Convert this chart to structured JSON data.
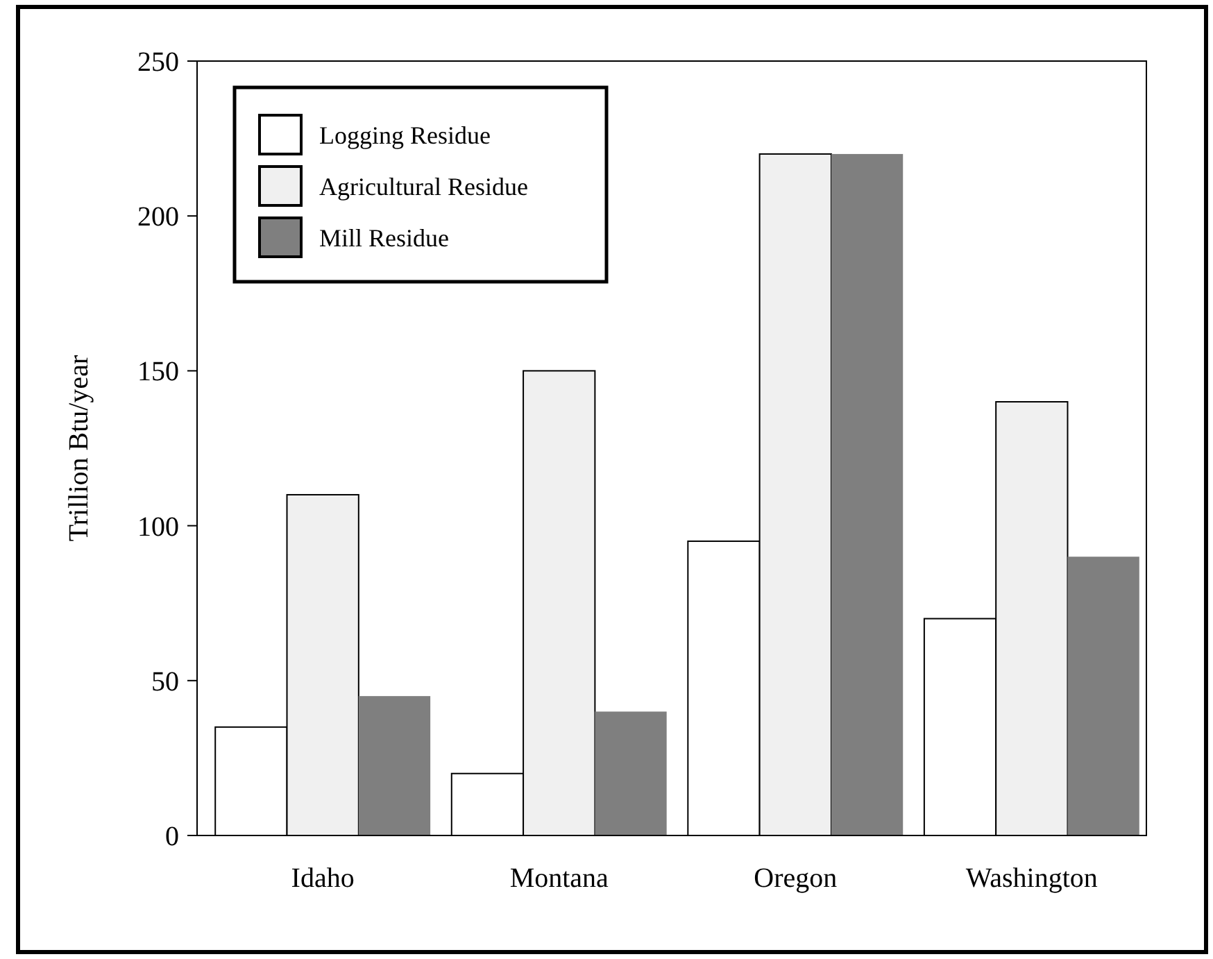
{
  "chart_data": {
    "type": "bar",
    "ylabel": "Trillion Btu/year",
    "categories": [
      "Idaho",
      "Montana",
      "Oregon",
      "Washington"
    ],
    "series": [
      {
        "name": "Logging Residue",
        "color": "#ffffff",
        "values": [
          35,
          20,
          95,
          70
        ]
      },
      {
        "name": "Agricultural Residue",
        "color": "#f0f0f0",
        "values": [
          110,
          150,
          220,
          140
        ]
      },
      {
        "name": "Mill Residue",
        "color": "#7f7f7f",
        "values": [
          45,
          40,
          220,
          90
        ]
      }
    ],
    "ylim": [
      0,
      250
    ],
    "yticks": [
      0,
      50,
      100,
      150,
      200,
      250
    ],
    "legend": "top left",
    "grid": false
  }
}
